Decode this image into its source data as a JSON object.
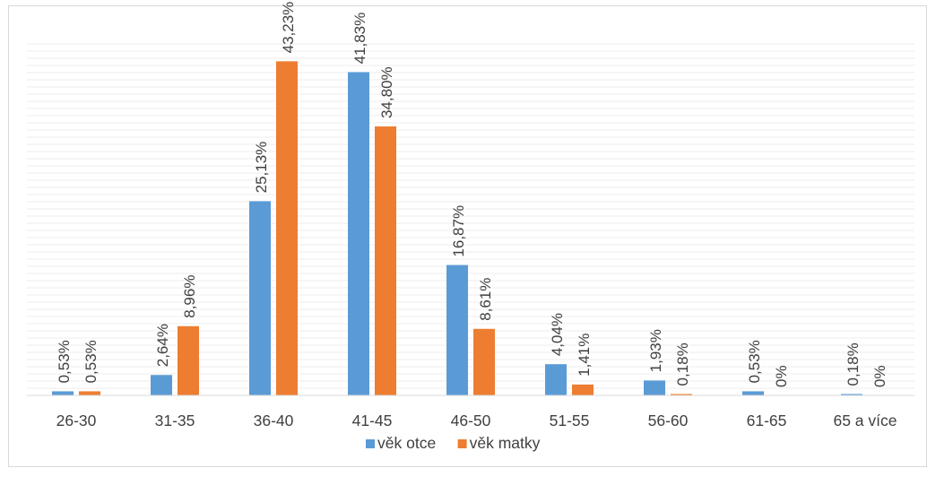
{
  "chart_data": {
    "type": "bar",
    "title": "",
    "xlabel": "",
    "ylabel": "",
    "ylim": [
      0,
      45
    ],
    "grid": "horizontal",
    "legend_position": "bottom",
    "categories": [
      "26-30",
      "31-35",
      "36-40",
      "41-45",
      "46-50",
      "51-55",
      "56-60",
      "61-65",
      "65 a více"
    ],
    "series": [
      {
        "name": "věk otce",
        "color": "#5b9bd5",
        "values": [
          0.53,
          2.64,
          25.13,
          41.83,
          16.87,
          4.04,
          1.93,
          0.53,
          0.18
        ],
        "labels": [
          "0,53%",
          "2,64%",
          "25,13%",
          "41,83%",
          "16,87%",
          "4,04%",
          "1,93%",
          "0,53%",
          "0,18%"
        ]
      },
      {
        "name": "věk matky",
        "color": "#ed7d31",
        "values": [
          0.53,
          8.96,
          43.23,
          34.8,
          8.61,
          1.41,
          0.18,
          0,
          0
        ],
        "labels": [
          "0,53%",
          "8,96%",
          "43,23%",
          "34,80%",
          "8,61%",
          "1,41%",
          "0,18%",
          "0%",
          "0%"
        ]
      }
    ]
  }
}
